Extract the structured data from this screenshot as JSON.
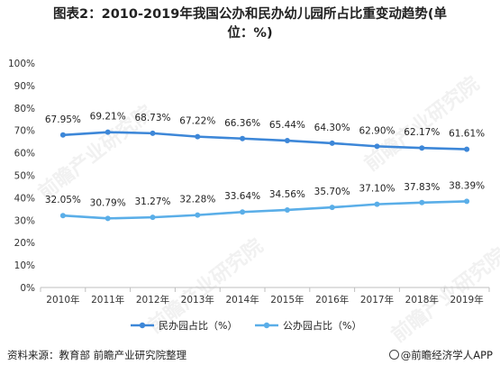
{
  "title": {
    "line1": "图表2：2010-2019年我国公办和民办幼儿园所占比重变动趋势(单",
    "line2": "位：%)"
  },
  "source": "资料来源：教育部 前瞻产业研究院整理",
  "brand": "@前瞻经济学人APP",
  "watermark": "前瞻产业研究院",
  "chart_data": {
    "type": "line",
    "categories": [
      "2010年",
      "2011年",
      "2012年",
      "2013年",
      "2014年",
      "2015年",
      "2016年",
      "2017年",
      "2018年",
      "2019年"
    ],
    "series": [
      {
        "name": "民办园占比（%）",
        "color": "#3d87d8",
        "values": [
          67.95,
          69.21,
          68.73,
          67.22,
          66.36,
          65.44,
          64.3,
          62.9,
          62.17,
          61.61
        ],
        "labels": [
          "67.95%",
          "69.21%",
          "68.73%",
          "67.22%",
          "66.36%",
          "65.44%",
          "64.30%",
          "62.90%",
          "62.17%",
          "61.61%"
        ]
      },
      {
        "name": "公办园占比（%）",
        "color": "#5aaee8",
        "values": [
          32.05,
          30.79,
          31.27,
          32.28,
          33.64,
          34.56,
          35.7,
          37.1,
          37.83,
          38.39
        ],
        "labels": [
          "32.05%",
          "30.79%",
          "31.27%",
          "32.28%",
          "33.64%",
          "34.56%",
          "35.70%",
          "37.10%",
          "37.83%",
          "38.39%"
        ]
      }
    ],
    "yticks": [
      "0%",
      "10%",
      "20%",
      "30%",
      "40%",
      "50%",
      "60%",
      "70%",
      "80%",
      "90%",
      "100%"
    ],
    "ylim": [
      0,
      100
    ],
    "grid": false,
    "legend": "bottom"
  }
}
